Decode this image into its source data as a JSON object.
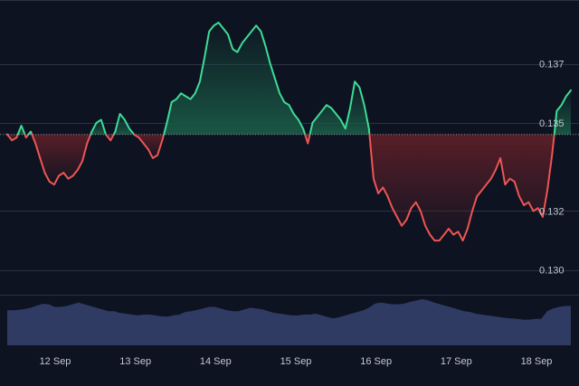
{
  "chart_data": {
    "type": "area",
    "baseline": {
      "value": 0.1346,
      "style": "dotted"
    },
    "x_ticks": [
      "12 Sep",
      "13 Sep",
      "14 Sep",
      "15 Sep",
      "16 Sep",
      "17 Sep",
      "18 Sep"
    ],
    "y_ticks": [
      0.137,
      0.135,
      0.132,
      0.13
    ],
    "y_tick_labels": [
      "0.137",
      "0.135",
      "0.132",
      "0.130"
    ],
    "ylim": [
      0.12916,
      0.1388
    ],
    "grid": true,
    "series": [
      {
        "values": [
          0.1346,
          0.1344,
          0.1345,
          0.1349,
          0.1345,
          0.1347,
          0.1343,
          0.1338,
          0.1333,
          0.133,
          0.1329,
          0.1332,
          0.1333,
          0.1331,
          0.1332,
          0.1334,
          0.1337,
          0.1343,
          0.1347,
          0.135,
          0.1351,
          0.1346,
          0.1344,
          0.1347,
          0.1353,
          0.1351,
          0.1348,
          0.1346,
          0.1345,
          0.1343,
          0.1341,
          0.1338,
          0.1339,
          0.1344,
          0.135,
          0.1357,
          0.1358,
          0.136,
          0.1359,
          0.1358,
          0.136,
          0.1364,
          0.1372,
          0.1381,
          0.1383,
          0.1384,
          0.1382,
          0.138,
          0.1375,
          0.1374,
          0.1377,
          0.1379,
          0.1381,
          0.1383,
          0.1381,
          0.1376,
          0.137,
          0.1365,
          0.136,
          0.1357,
          0.1356,
          0.1353,
          0.1351,
          0.1348,
          0.1343,
          0.135,
          0.1352,
          0.1354,
          0.1356,
          0.1355,
          0.1353,
          0.1351,
          0.1348,
          0.1355,
          0.1364,
          0.1362,
          0.1356,
          0.1348,
          0.1331,
          0.1326,
          0.1328,
          0.1325,
          0.1321,
          0.1318,
          0.1315,
          0.1317,
          0.1321,
          0.1323,
          0.132,
          0.1315,
          0.1312,
          0.131,
          0.131,
          0.1312,
          0.1314,
          0.1312,
          0.1313,
          0.131,
          0.1314,
          0.132,
          0.1325,
          0.1327,
          0.1329,
          0.1331,
          0.1334,
          0.1338,
          0.1329,
          0.1331,
          0.133,
          0.1325,
          0.1322,
          0.1323,
          0.132,
          0.1321,
          0.1318,
          0.1327,
          0.1339,
          0.1354,
          0.1356,
          0.1359,
          0.1361
        ]
      }
    ],
    "volume": [
      0.82,
      0.82,
      0.83,
      0.85,
      0.88,
      0.93,
      0.97,
      0.96,
      0.9,
      0.9,
      0.92,
      0.96,
      1.0,
      0.96,
      0.92,
      0.88,
      0.84,
      0.8,
      0.8,
      0.76,
      0.74,
      0.72,
      0.7,
      0.72,
      0.72,
      0.7,
      0.68,
      0.67,
      0.7,
      0.72,
      0.78,
      0.8,
      0.83,
      0.86,
      0.9,
      0.9,
      0.86,
      0.82,
      0.8,
      0.8,
      0.84,
      0.88,
      0.86,
      0.84,
      0.8,
      0.76,
      0.74,
      0.72,
      0.7,
      0.7,
      0.72,
      0.72,
      0.74,
      0.7,
      0.66,
      0.63,
      0.66,
      0.7,
      0.74,
      0.78,
      0.82,
      0.88,
      0.98,
      1.0,
      0.98,
      0.96,
      0.96,
      0.98,
      1.02,
      1.05,
      1.08,
      1.05,
      1.0,
      0.96,
      0.92,
      0.88,
      0.84,
      0.8,
      0.78,
      0.74,
      0.72,
      0.7,
      0.68,
      0.66,
      0.64,
      0.63,
      0.62,
      0.6,
      0.6,
      0.62,
      0.62,
      0.8,
      0.86,
      0.9,
      0.92,
      0.92
    ],
    "colors": {
      "background": "#0d1321",
      "up_line": "#3ddc97",
      "down_line": "#f05454",
      "up_fill": "#1a5a45",
      "down_fill": "#5c1f28",
      "grid": "#2b3242",
      "baseline": "#8f96a3",
      "volume": "#2f3b63",
      "tick_text": "#c3c7d0"
    }
  }
}
